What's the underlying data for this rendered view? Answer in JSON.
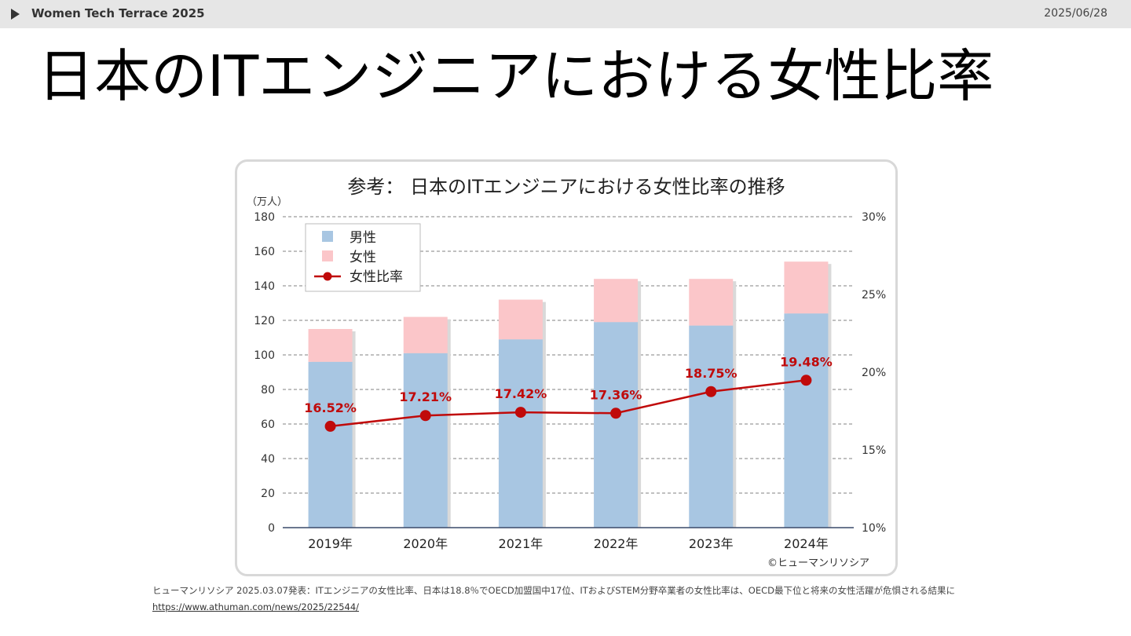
{
  "header": {
    "event_title": "Women Tech Terrace 2025",
    "date": "2025/06/28"
  },
  "slide": {
    "title": "日本のITエンジニアにおける女性比率"
  },
  "footer": {
    "caption": "ヒューマンリソシア 2025.03.07発表：ITエンジニアの女性比率、日本は18.8％でOECD加盟国中17位、ITおよびSTEM分野卒業者の女性比率は、OECD最下位と将来の女性活躍が危惧される結果に",
    "link": "https://www.athuman.com/news/2025/22544/"
  },
  "colors": {
    "male": "#a8c6e2",
    "female": "#fbc6c9",
    "ratio": "#c00a0a",
    "gridline": "#808080"
  },
  "chart_data": {
    "type": "bar",
    "title": "参考： 日本のITエンジニアにおける女性比率の推移",
    "y_unit_label": "（万人）",
    "categories": [
      "2019年",
      "2020年",
      "2021年",
      "2022年",
      "2023年",
      "2024年"
    ],
    "series": [
      {
        "name": "男性",
        "kind": "stacked-bar",
        "axis": "left",
        "values": [
          96,
          101,
          109,
          119,
          117,
          124
        ]
      },
      {
        "name": "女性",
        "kind": "stacked-bar",
        "axis": "left",
        "values": [
          19,
          21,
          23,
          25,
          27,
          30
        ]
      },
      {
        "name": "女性比率",
        "kind": "line",
        "axis": "right",
        "values": [
          16.52,
          17.21,
          17.42,
          17.36,
          18.75,
          19.48
        ],
        "labels": [
          "16.52%",
          "17.21%",
          "17.42%",
          "17.36%",
          "18.75%",
          "19.48%"
        ]
      }
    ],
    "ylim": [
      0,
      180
    ],
    "yticks": [
      "0",
      "20",
      "40",
      "60",
      "80",
      "100",
      "120",
      "140",
      "160",
      "180"
    ],
    "y2lim": [
      10,
      30
    ],
    "y2ticks": [
      "10%",
      "15%",
      "20%",
      "25%",
      "30%"
    ],
    "grid": true,
    "legend_position": "top-left",
    "copyright": "©ヒューマンリソシア"
  }
}
